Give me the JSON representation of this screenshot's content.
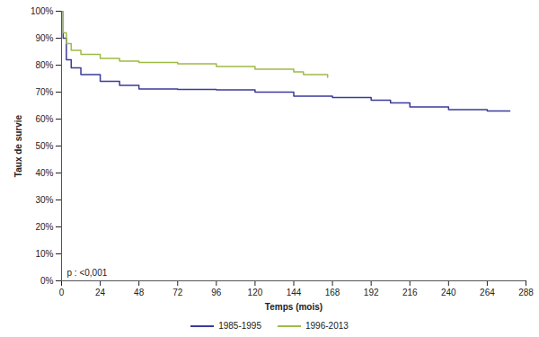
{
  "chart_data": {
    "type": "line",
    "xlabel": "Temps (mois)",
    "ylabel": "Taux de survie",
    "annotation": "p : <0,001",
    "xlim": [
      0,
      288
    ],
    "xticks": [
      0,
      24,
      48,
      72,
      96,
      120,
      144,
      168,
      192,
      216,
      240,
      264,
      288
    ],
    "ylim": [
      0,
      100
    ],
    "yticks": [
      {
        "value": 0,
        "label": "0%"
      },
      {
        "value": 10,
        "label": "10%"
      },
      {
        "value": 20,
        "label": "20%"
      },
      {
        "value": 30,
        "label": "30%"
      },
      {
        "value": 40,
        "label": "40%"
      },
      {
        "value": 50,
        "label": "50%"
      },
      {
        "value": 60,
        "label": "60%"
      },
      {
        "value": 70,
        "label": "70%"
      },
      {
        "value": 80,
        "label": "80%"
      },
      {
        "value": 90,
        "label": "90%"
      },
      {
        "value": 100,
        "label": "100%"
      }
    ],
    "grid": false,
    "legend": "bottom",
    "line_style": "step",
    "series": [
      {
        "name": "1985-1995",
        "color": "#3b3a9c",
        "x": [
          0,
          1,
          3,
          6,
          12,
          24,
          36,
          48,
          72,
          96,
          120,
          144,
          168,
          192,
          204,
          216,
          240,
          264,
          278
        ],
        "values": [
          100,
          90,
          82,
          79,
          76.5,
          74,
          72.5,
          71.2,
          71,
          70.8,
          70,
          68.5,
          68,
          67,
          66,
          64.5,
          63.5,
          63,
          63
        ]
      },
      {
        "name": "1996-2013",
        "color": "#9fbb45",
        "x": [
          0,
          1,
          3,
          6,
          12,
          24,
          36,
          48,
          72,
          96,
          120,
          144,
          150,
          165
        ],
        "values": [
          100,
          92,
          88,
          85.5,
          84,
          82.5,
          81.5,
          81,
          80.5,
          79.5,
          78.5,
          77.5,
          76.5,
          75.5
        ]
      }
    ]
  }
}
